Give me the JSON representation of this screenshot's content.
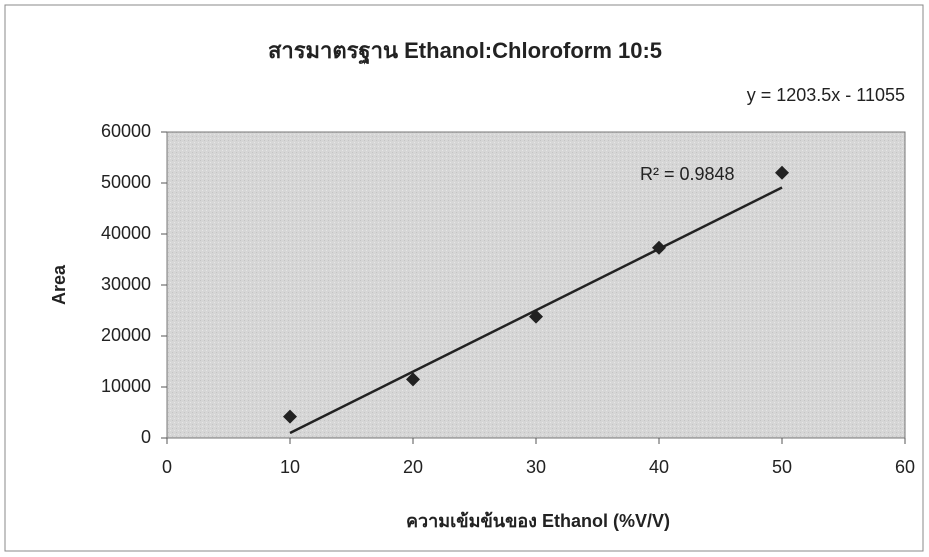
{
  "chart_data": {
    "type": "scatter",
    "title": "สารมาตรฐาน Ethanol:Chloroform 10:5",
    "x_label": "ความเข้มข้นของ Ethanol (%V/V)",
    "y_label": "Area",
    "x": [
      10,
      20,
      30,
      40,
      50
    ],
    "values": [
      4200,
      11500,
      23800,
      37300,
      52000
    ],
    "color": "#222222",
    "xlim": [
      0,
      60
    ],
    "xticks": [
      0,
      10,
      20,
      30,
      40,
      50,
      60
    ],
    "ylim": [
      0,
      60000
    ],
    "yticks": [
      0,
      10000,
      20000,
      30000,
      40000,
      50000,
      60000
    ],
    "grid": false,
    "trendline": {
      "equation": "y = 1203.5x - 11055",
      "r2_label": "R² = 0.9848",
      "slope": 1203.5,
      "intercept": -11055,
      "color": "#222222"
    }
  }
}
